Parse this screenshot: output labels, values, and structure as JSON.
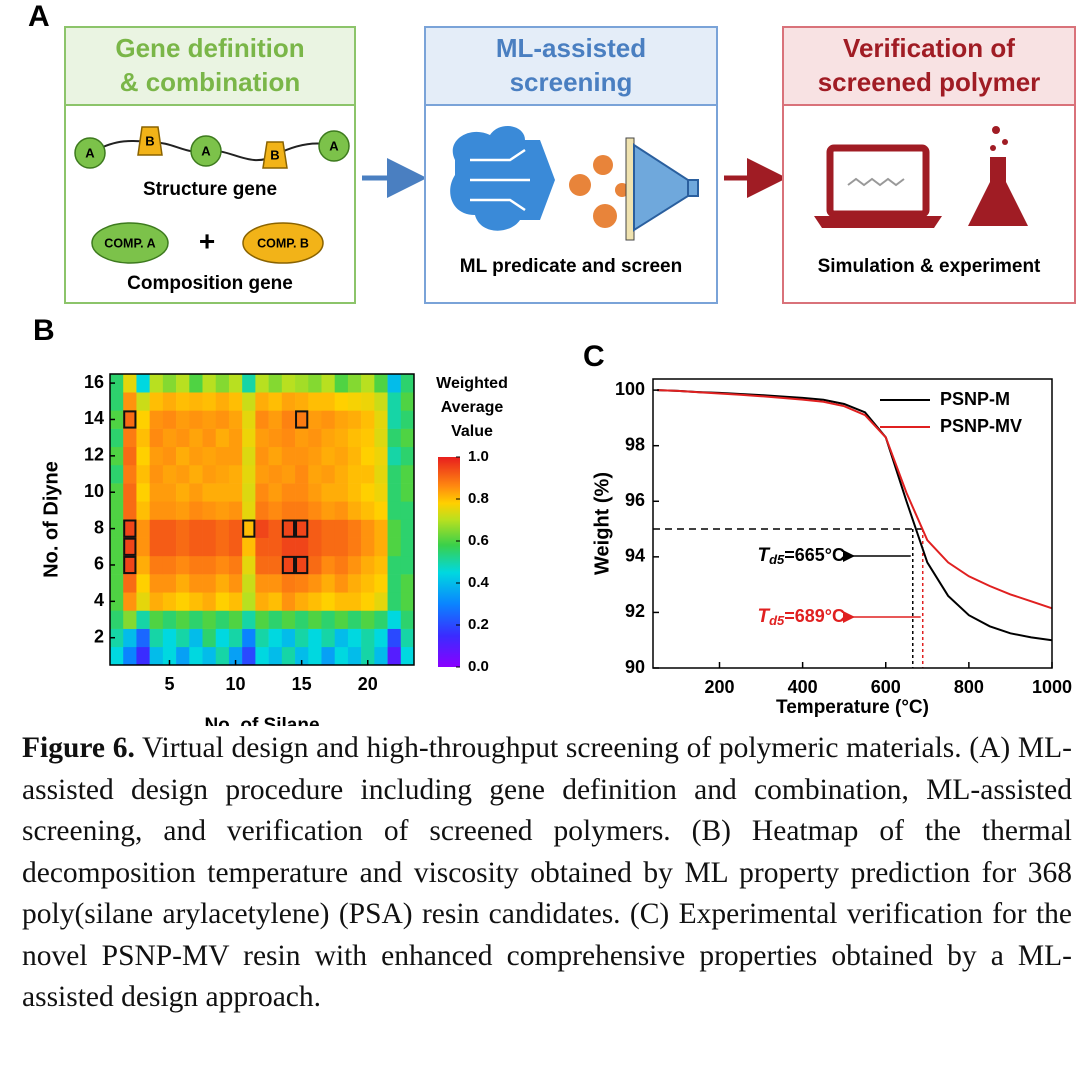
{
  "panel_labels": [
    "A",
    "B",
    "C"
  ],
  "panel_a": {
    "gene_box": {
      "title_lines": [
        "Gene definition",
        "& combination"
      ],
      "structure_nodes": [
        "A",
        "B",
        "A",
        "B",
        "A"
      ],
      "structure_label": "Structure gene",
      "comp_a": "COMP. A",
      "plus": "+",
      "comp_b": "COMP. B",
      "composition_label": "Composition gene"
    },
    "ml_box": {
      "title_lines": [
        "ML-assisted",
        "screening"
      ],
      "label": "ML predicate and screen"
    },
    "verify_box": {
      "title_lines": [
        "Verification of",
        "screened polymer"
      ],
      "label": "Simulation & experiment"
    }
  },
  "chart_data": [
    {
      "type": "heatmap",
      "xlabel": "No. of Silane",
      "ylabel": "No. of Diyne",
      "colorbar_title": [
        "Weighted",
        "Average",
        "Value"
      ],
      "x": [
        1,
        2,
        3,
        4,
        5,
        6,
        7,
        8,
        9,
        10,
        11,
        12,
        13,
        14,
        15,
        16,
        17,
        18,
        19,
        20,
        21,
        22,
        23
      ],
      "y": [
        1,
        2,
        3,
        4,
        5,
        6,
        7,
        8,
        9,
        10,
        11,
        12,
        13,
        14,
        15,
        16
      ],
      "values": [
        [
          0.45,
          0.3,
          0.15,
          0.4,
          0.45,
          0.35,
          0.45,
          0.4,
          0.5,
          0.35,
          0.2,
          0.45,
          0.4,
          0.5,
          0.4,
          0.45,
          0.35,
          0.45,
          0.4,
          0.5,
          0.4,
          0.1,
          0.45
        ],
        [
          0.5,
          0.4,
          0.25,
          0.5,
          0.45,
          0.5,
          0.4,
          0.55,
          0.45,
          0.5,
          0.3,
          0.5,
          0.45,
          0.4,
          0.5,
          0.45,
          0.5,
          0.4,
          0.45,
          0.5,
          0.45,
          0.2,
          0.5
        ],
        [
          0.55,
          0.65,
          0.5,
          0.6,
          0.55,
          0.6,
          0.55,
          0.6,
          0.55,
          0.6,
          0.5,
          0.6,
          0.55,
          0.6,
          0.55,
          0.6,
          0.55,
          0.6,
          0.55,
          0.6,
          0.55,
          0.45,
          0.55
        ],
        [
          0.6,
          0.85,
          0.75,
          0.82,
          0.8,
          0.78,
          0.8,
          0.82,
          0.78,
          0.8,
          0.7,
          0.82,
          0.8,
          0.85,
          0.82,
          0.8,
          0.78,
          0.8,
          0.8,
          0.78,
          0.75,
          0.55,
          0.6
        ],
        [
          0.6,
          0.9,
          0.78,
          0.85,
          0.85,
          0.82,
          0.85,
          0.85,
          0.82,
          0.85,
          0.72,
          0.85,
          0.85,
          0.88,
          0.87,
          0.85,
          0.82,
          0.85,
          0.82,
          0.8,
          0.78,
          0.55,
          0.6
        ],
        [
          0.6,
          0.95,
          0.82,
          0.88,
          0.88,
          0.86,
          0.88,
          0.88,
          0.86,
          0.88,
          0.75,
          0.9,
          0.9,
          0.95,
          0.95,
          0.9,
          0.86,
          0.88,
          0.85,
          0.82,
          0.8,
          0.55,
          0.55
        ],
        [
          0.6,
          0.95,
          0.85,
          0.92,
          0.92,
          0.9,
          0.92,
          0.92,
          0.9,
          0.92,
          0.8,
          0.92,
          0.92,
          0.95,
          0.95,
          0.92,
          0.9,
          0.9,
          0.88,
          0.85,
          0.82,
          0.6,
          0.55
        ],
        [
          0.6,
          0.95,
          0.85,
          0.92,
          0.92,
          0.9,
          0.92,
          0.92,
          0.9,
          0.92,
          0.8,
          0.95,
          0.92,
          0.95,
          0.95,
          0.92,
          0.9,
          0.9,
          0.88,
          0.85,
          0.82,
          0.6,
          0.55
        ],
        [
          0.6,
          0.9,
          0.8,
          0.85,
          0.85,
          0.84,
          0.86,
          0.85,
          0.84,
          0.85,
          0.75,
          0.88,
          0.86,
          0.88,
          0.88,
          0.86,
          0.84,
          0.85,
          0.82,
          0.8,
          0.78,
          0.55,
          0.55
        ],
        [
          0.6,
          0.9,
          0.78,
          0.84,
          0.84,
          0.82,
          0.84,
          0.82,
          0.82,
          0.82,
          0.74,
          0.86,
          0.84,
          0.86,
          0.86,
          0.84,
          0.82,
          0.82,
          0.8,
          0.78,
          0.76,
          0.55,
          0.6
        ],
        [
          0.55,
          0.88,
          0.8,
          0.85,
          0.83,
          0.84,
          0.82,
          0.84,
          0.83,
          0.82,
          0.75,
          0.84,
          0.85,
          0.84,
          0.86,
          0.83,
          0.84,
          0.82,
          0.8,
          0.8,
          0.75,
          0.55,
          0.6
        ],
        [
          0.6,
          0.9,
          0.78,
          0.84,
          0.85,
          0.82,
          0.84,
          0.83,
          0.84,
          0.84,
          0.74,
          0.85,
          0.83,
          0.85,
          0.85,
          0.84,
          0.82,
          0.83,
          0.81,
          0.78,
          0.76,
          0.5,
          0.55
        ],
        [
          0.55,
          0.88,
          0.8,
          0.86,
          0.84,
          0.85,
          0.83,
          0.85,
          0.82,
          0.84,
          0.76,
          0.84,
          0.85,
          0.86,
          0.84,
          0.85,
          0.83,
          0.82,
          0.8,
          0.79,
          0.74,
          0.55,
          0.6
        ],
        [
          0.6,
          0.9,
          0.78,
          0.85,
          0.86,
          0.84,
          0.85,
          0.84,
          0.85,
          0.83,
          0.75,
          0.86,
          0.84,
          0.87,
          0.88,
          0.84,
          0.85,
          0.83,
          0.82,
          0.8,
          0.75,
          0.5,
          0.55
        ],
        [
          0.55,
          0.85,
          0.72,
          0.8,
          0.82,
          0.8,
          0.81,
          0.8,
          0.82,
          0.8,
          0.72,
          0.82,
          0.8,
          0.83,
          0.82,
          0.8,
          0.8,
          0.78,
          0.77,
          0.76,
          0.72,
          0.5,
          0.6
        ],
        [
          0.55,
          0.75,
          0.45,
          0.7,
          0.65,
          0.7,
          0.6,
          0.7,
          0.65,
          0.7,
          0.5,
          0.7,
          0.65,
          0.7,
          0.68,
          0.65,
          0.7,
          0.6,
          0.65,
          0.7,
          0.6,
          0.4,
          0.55
        ]
      ],
      "xlim": [
        0.5,
        23.5
      ],
      "ylim": [
        0.5,
        16.5
      ],
      "xticks": [
        5,
        10,
        15,
        20
      ],
      "yticks": [
        2,
        4,
        6,
        8,
        10,
        12,
        14,
        16
      ],
      "clim": [
        0,
        1
      ],
      "cticks": [
        {
          "value": 0,
          "label": "0.0"
        },
        {
          "value": 0.2,
          "label": "0.2"
        },
        {
          "value": 0.4,
          "label": "0.4"
        },
        {
          "value": 0.6,
          "label": "0.6"
        },
        {
          "value": 0.8,
          "label": "0.8"
        },
        {
          "value": 1,
          "label": "1.0"
        }
      ],
      "highlighted": [
        [
          2,
          14
        ],
        [
          15,
          14
        ],
        [
          2,
          8
        ],
        [
          2,
          7
        ],
        [
          2,
          6
        ],
        [
          11,
          8
        ],
        [
          14,
          8
        ],
        [
          15,
          8
        ],
        [
          14,
          6
        ],
        [
          15,
          6
        ]
      ]
    },
    {
      "type": "line",
      "xlabel": "Temperature (°C)",
      "ylabel": "Weight (%)",
      "x": [
        50,
        100,
        150,
        200,
        250,
        300,
        350,
        400,
        450,
        500,
        550,
        600,
        650,
        700,
        750,
        800,
        850,
        900,
        950,
        1000
      ],
      "series": [
        {
          "name": "PSNP-M",
          "color": "#000000",
          "values": [
            100,
            99.97,
            99.93,
            99.9,
            99.86,
            99.82,
            99.77,
            99.72,
            99.65,
            99.5,
            99.2,
            98.3,
            96.0,
            93.8,
            92.6,
            91.9,
            91.5,
            91.25,
            91.1,
            91.0
          ]
        },
        {
          "name": "PSNP-MV",
          "color": "#e02020",
          "values": [
            100,
            99.97,
            99.92,
            99.88,
            99.83,
            99.78,
            99.72,
            99.66,
            99.58,
            99.42,
            99.1,
            98.3,
            96.3,
            94.6,
            93.8,
            93.3,
            92.95,
            92.65,
            92.4,
            92.15
          ]
        }
      ],
      "xlim": [
        40,
        1000
      ],
      "ylim": [
        90,
        100.4
      ],
      "xticks": [
        200,
        400,
        600,
        800,
        1000
      ],
      "yticks": [
        90,
        92,
        94,
        96,
        98,
        100
      ],
      "legend": "upper right",
      "reference_y": 95,
      "annotations": [
        {
          "symbol": "T",
          "subscript": "d5",
          "text": "=665°C",
          "x": 665,
          "color": "#000000"
        },
        {
          "symbol": "T",
          "subscript": "d5",
          "text": "=689°C",
          "x": 689,
          "color": "#e02020"
        }
      ]
    }
  ],
  "caption": {
    "label": "Figure 6.",
    "text": "Virtual design and high-throughput screening of polymeric materials. (A) ML-assisted design procedure including gene definition and combination, ML-assisted screening, and verification of screened polymers. (B) Heatmap of the thermal decomposition temperature and viscosity obtained by ML property prediction for 368 poly(silane arylacetylene) (PSA) resin candidates. (C) Experimental verification for the novel PSNP-MV resin with enhanced comprehensive properties obtained by a ML-assisted design approach."
  }
}
